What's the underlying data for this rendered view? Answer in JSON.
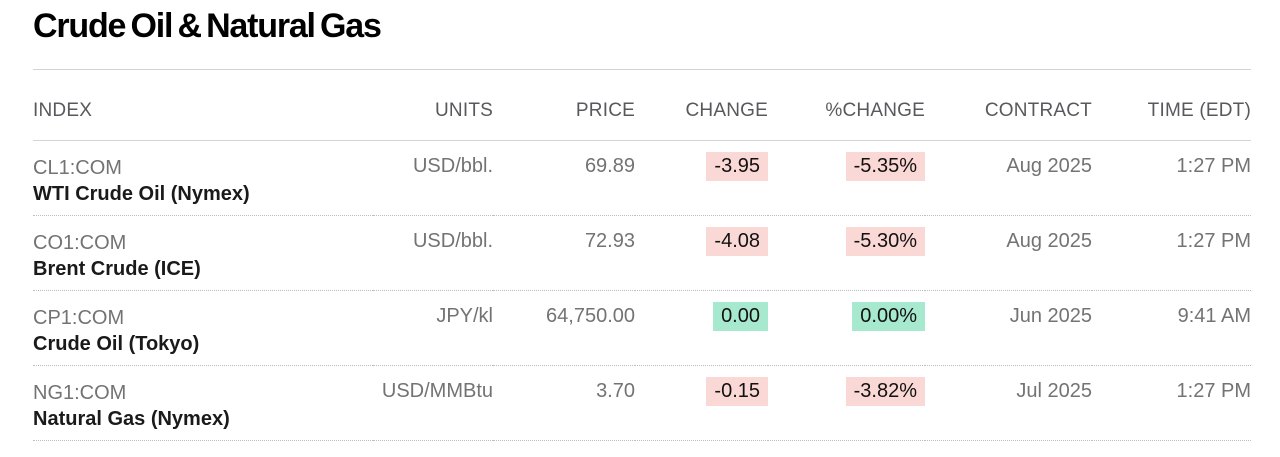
{
  "page": {
    "title": "Crude Oil & Natural Gas"
  },
  "table": {
    "columns": [
      "INDEX",
      "UNITS",
      "PRICE",
      "CHANGE",
      "%CHANGE",
      "CONTRACT",
      "TIME (EDT)"
    ],
    "rows": [
      {
        "ticker": "CL1:COM",
        "name": "WTI Crude Oil (Nymex)",
        "units": "USD/bbl.",
        "price": "69.89",
        "change": "-3.95",
        "pct_change": "-5.35%",
        "direction": "down",
        "contract": "Aug 2025",
        "time": "1:27 PM"
      },
      {
        "ticker": "CO1:COM",
        "name": "Brent Crude (ICE)",
        "units": "USD/bbl.",
        "price": "72.93",
        "change": "-4.08",
        "pct_change": "-5.30%",
        "direction": "down",
        "contract": "Aug 2025",
        "time": "1:27 PM"
      },
      {
        "ticker": "CP1:COM",
        "name": "Crude Oil (Tokyo)",
        "units": "JPY/kl",
        "price": "64,750.00",
        "change": "0.00",
        "pct_change": "0.00%",
        "direction": "flat",
        "contract": "Jun 2025",
        "time": "9:41 AM"
      },
      {
        "ticker": "NG1:COM",
        "name": "Natural Gas (Nymex)",
        "units": "USD/MMBtu",
        "price": "3.70",
        "change": "-0.15",
        "pct_change": "-3.82%",
        "direction": "down",
        "contract": "Jul 2025",
        "time": "1:27 PM"
      }
    ]
  },
  "colors": {
    "negative_bg": "#fad8d5",
    "positive_bg": "#a7e9ce"
  }
}
